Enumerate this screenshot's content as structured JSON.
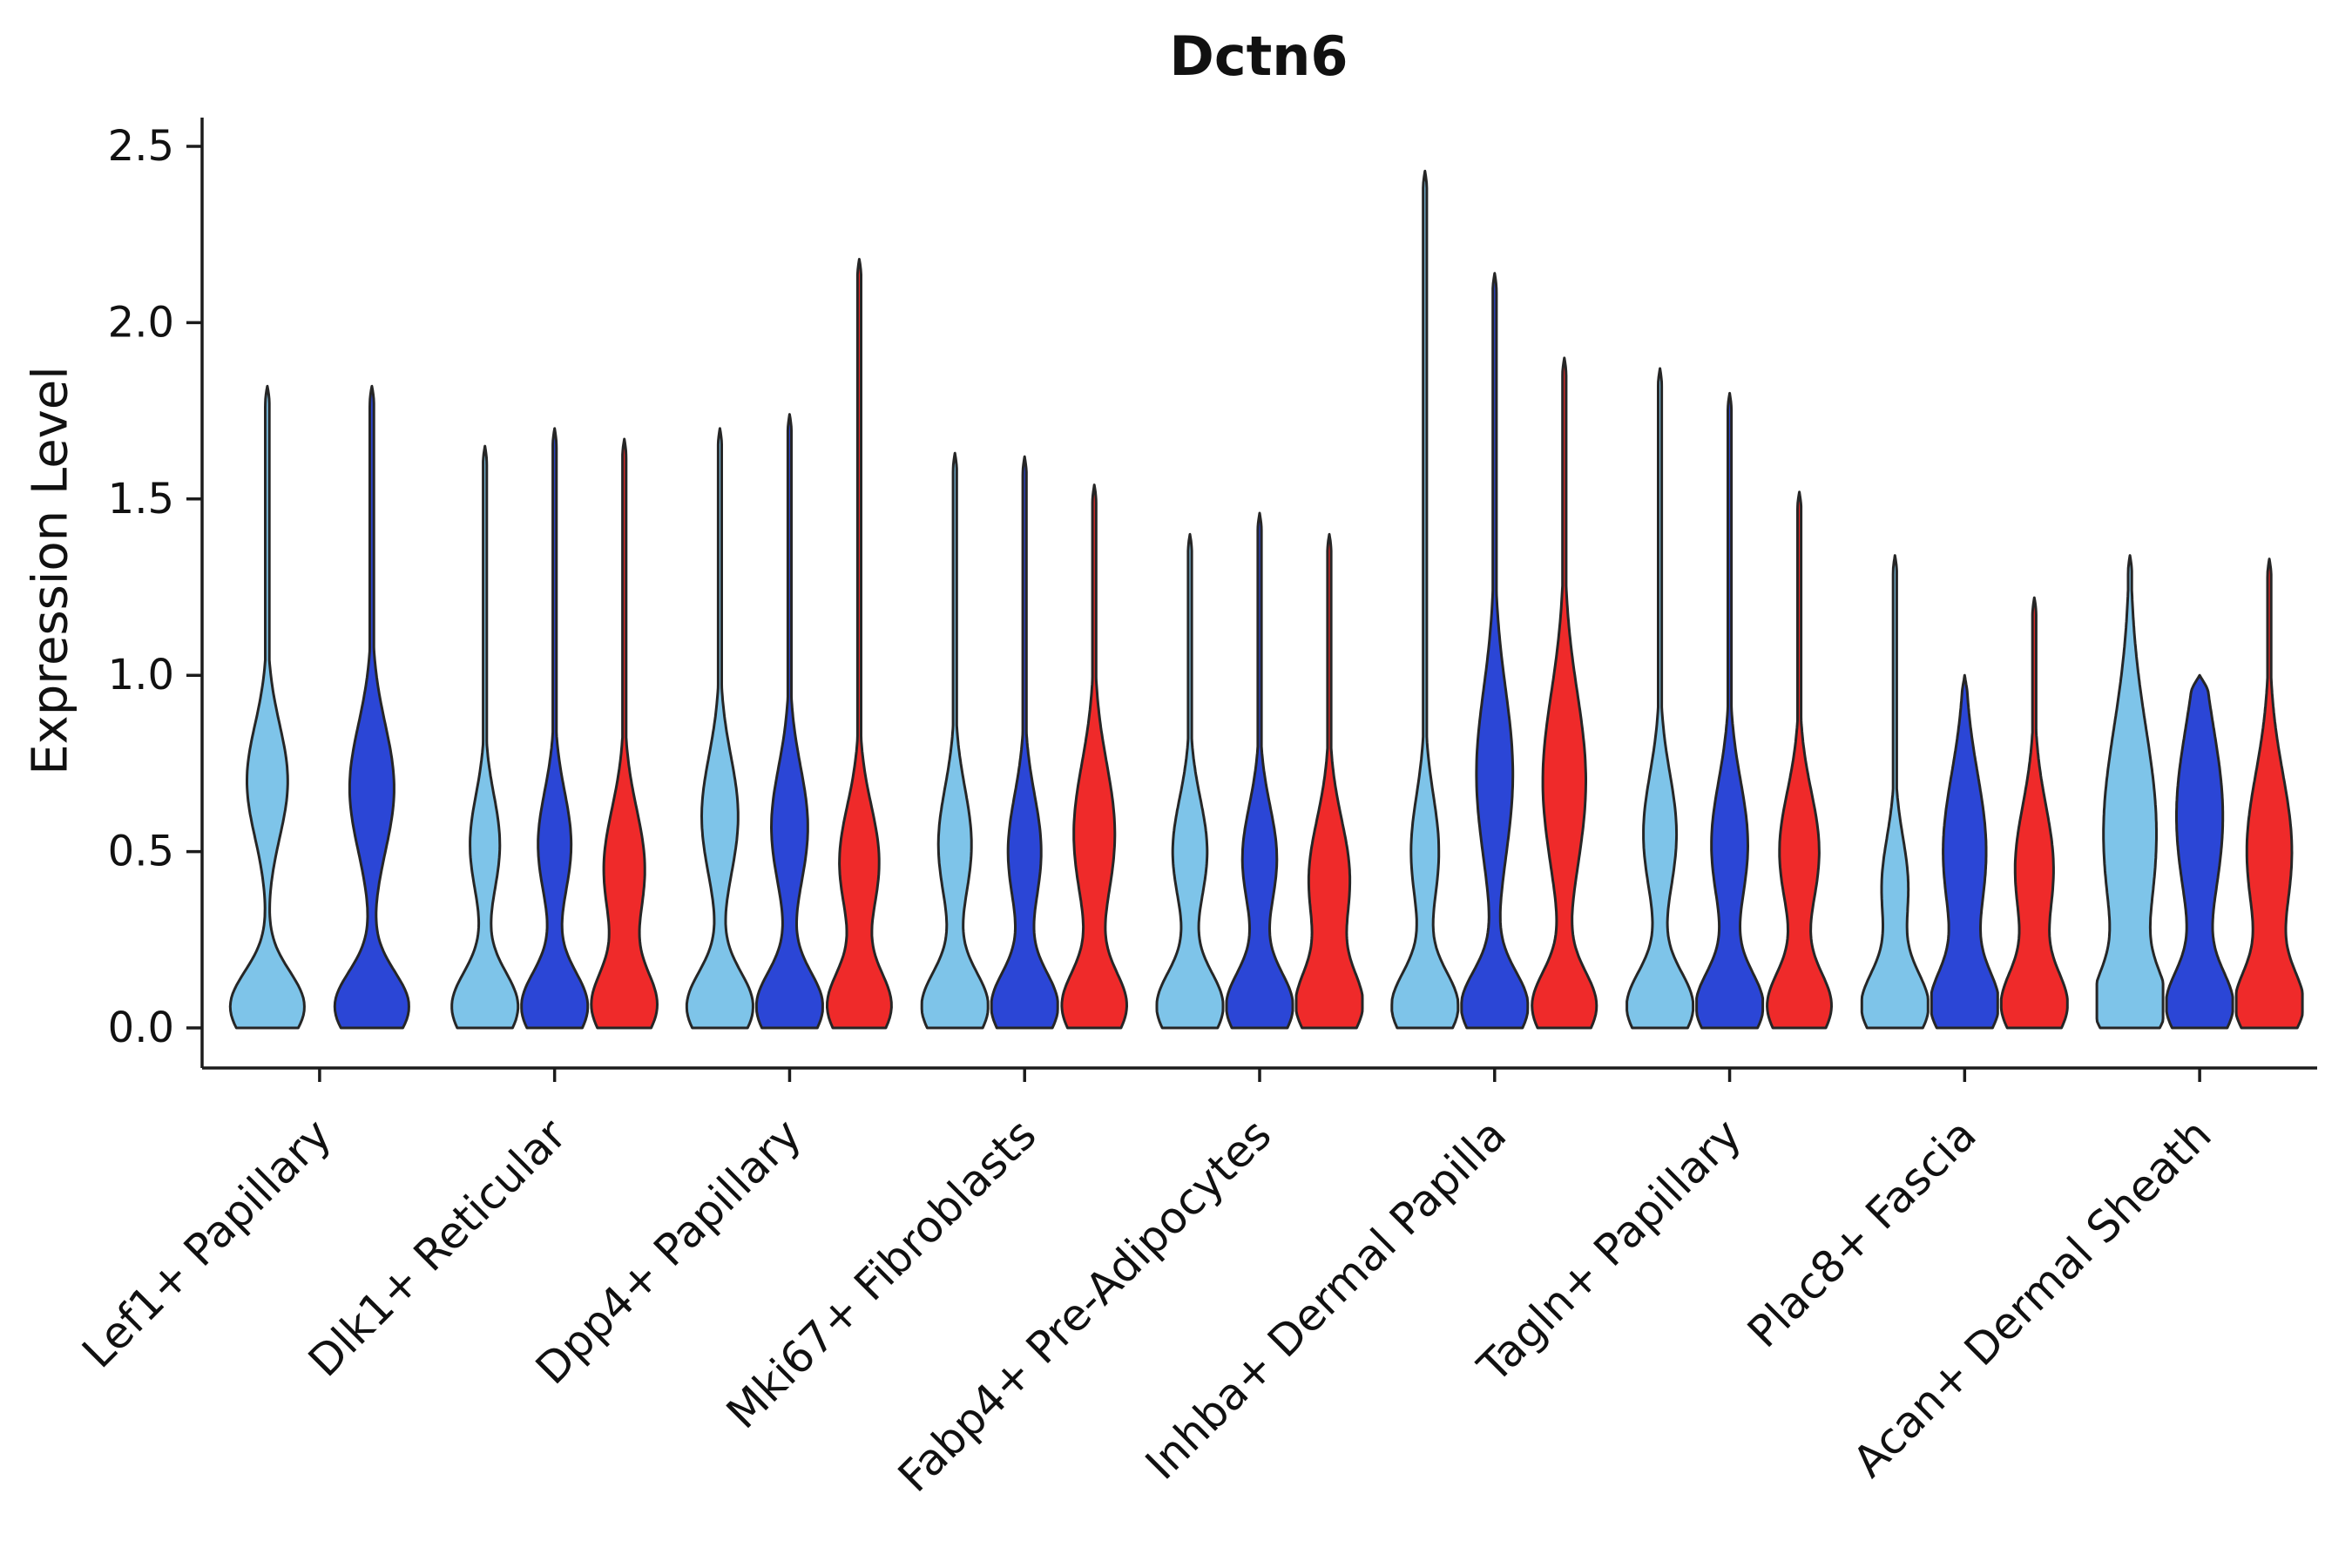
{
  "chart_data": {
    "type": "violin",
    "title": "Dctn6",
    "ylabel": "Expression Level",
    "xlabel": "",
    "ylim": [
      0,
      2.5
    ],
    "yticks": [
      0,
      0.5,
      1,
      1.5,
      2,
      2.5
    ],
    "ytick_labels": [
      "0.0",
      "0.5",
      "1.0",
      "1.5",
      "2.0",
      "2.5"
    ],
    "grid": false,
    "legend": "none",
    "palette": {
      "lightblue": "#7EC4E9",
      "blue": "#2B46D6",
      "red": "#EF2A2A"
    },
    "edge_color": "#262626",
    "categories": [
      "Lef1+ Papillary",
      "Dlk1+ Reticular",
      "Dpp4+ Papillary",
      "Mki67+ Fibroblasts",
      "Fabp4+ Pre-Adipocytes",
      "Inhba+ Dermal Papilla",
      "Tagln+ Papillary",
      "Plac8+ Fascia",
      "Acan+ Dermal Sheath"
    ],
    "violins": [
      {
        "group": 0,
        "slot": 0.25,
        "color": "lightblue",
        "max": 1.82,
        "w": 1.12,
        "bumps": [
          [
            0.06,
            1,
            0.1
          ],
          [
            0.7,
            0.55,
            0.16
          ]
        ]
      },
      {
        "group": 0,
        "slot": 1.75,
        "color": "blue",
        "max": 1.82,
        "w": 1.12,
        "bumps": [
          [
            0.06,
            1,
            0.1
          ],
          [
            0.68,
            0.6,
            0.18
          ]
        ]
      },
      {
        "group": 1,
        "slot": 0,
        "color": "lightblue",
        "max": 1.65,
        "w": 1,
        "bumps": [
          [
            0.06,
            1,
            0.1
          ],
          [
            0.52,
            0.45,
            0.14
          ]
        ]
      },
      {
        "group": 1,
        "slot": 1,
        "color": "blue",
        "max": 1.7,
        "w": 1,
        "bumps": [
          [
            0.06,
            1,
            0.1
          ],
          [
            0.52,
            0.5,
            0.15
          ]
        ]
      },
      {
        "group": 1,
        "slot": 2,
        "color": "red",
        "max": 1.67,
        "w": 1,
        "bumps": [
          [
            0.06,
            0.95,
            0.1
          ],
          [
            0.45,
            0.62,
            0.17
          ]
        ]
      },
      {
        "group": 2,
        "slot": 0,
        "color": "lightblue",
        "max": 1.7,
        "w": 1,
        "bumps": [
          [
            0.06,
            1,
            0.1
          ],
          [
            0.6,
            0.55,
            0.17
          ]
        ]
      },
      {
        "group": 2,
        "slot": 1,
        "color": "blue",
        "max": 1.74,
        "w": 1,
        "bumps": [
          [
            0.06,
            1,
            0.1
          ],
          [
            0.57,
            0.55,
            0.17
          ]
        ]
      },
      {
        "group": 2,
        "slot": 2,
        "color": "red",
        "max": 2.18,
        "w": 1,
        "bumps": [
          [
            0.06,
            0.95,
            0.1
          ],
          [
            0.47,
            0.6,
            0.16
          ]
        ]
      },
      {
        "group": 3,
        "slot": 0,
        "color": "lightblue",
        "max": 1.63,
        "w": 1,
        "bumps": [
          [
            0.06,
            1,
            0.1
          ],
          [
            0.52,
            0.5,
            0.16
          ]
        ]
      },
      {
        "group": 3,
        "slot": 1,
        "color": "blue",
        "max": 1.62,
        "w": 1,
        "bumps": [
          [
            0.06,
            1,
            0.1
          ],
          [
            0.5,
            0.5,
            0.16
          ]
        ]
      },
      {
        "group": 3,
        "slot": 2,
        "color": "red",
        "max": 1.54,
        "w": 1,
        "bumps": [
          [
            0.06,
            0.95,
            0.1
          ],
          [
            0.55,
            0.62,
            0.2
          ]
        ]
      },
      {
        "group": 4,
        "slot": 0,
        "color": "lightblue",
        "max": 1.4,
        "w": 1,
        "bumps": [
          [
            0.06,
            1,
            0.1
          ],
          [
            0.5,
            0.52,
            0.15
          ]
        ]
      },
      {
        "group": 4,
        "slot": 1,
        "color": "blue",
        "max": 1.46,
        "w": 1,
        "bumps": [
          [
            0.06,
            1,
            0.1
          ],
          [
            0.48,
            0.52,
            0.15
          ]
        ]
      },
      {
        "group": 4,
        "slot": 2,
        "color": "red",
        "max": 1.4,
        "w": 1,
        "bumps": [
          [
            0.06,
            0.95,
            0.1
          ],
          [
            0.42,
            0.62,
            0.17
          ]
        ]
      },
      {
        "group": 5,
        "slot": 0,
        "color": "lightblue",
        "max": 2.43,
        "w": 1,
        "bumps": [
          [
            0.06,
            1,
            0.1
          ],
          [
            0.5,
            0.42,
            0.16
          ]
        ]
      },
      {
        "group": 5,
        "slot": 1,
        "color": "blue",
        "max": 2.14,
        "w": 1,
        "bumps": [
          [
            0.06,
            1,
            0.1
          ],
          [
            0.72,
            0.55,
            0.24
          ]
        ]
      },
      {
        "group": 5,
        "slot": 2,
        "color": "red",
        "max": 1.9,
        "w": 1,
        "bumps": [
          [
            0.06,
            0.95,
            0.1
          ],
          [
            0.7,
            0.65,
            0.25
          ]
        ]
      },
      {
        "group": 6,
        "slot": 0,
        "color": "lightblue",
        "max": 1.87,
        "w": 1,
        "bumps": [
          [
            0.06,
            1,
            0.1
          ],
          [
            0.55,
            0.5,
            0.17
          ]
        ]
      },
      {
        "group": 6,
        "slot": 1,
        "color": "blue",
        "max": 1.8,
        "w": 1,
        "bumps": [
          [
            0.06,
            1,
            0.1
          ],
          [
            0.52,
            0.55,
            0.18
          ]
        ]
      },
      {
        "group": 6,
        "slot": 2,
        "color": "red",
        "max": 1.52,
        "w": 1,
        "bumps": [
          [
            0.06,
            0.95,
            0.1
          ],
          [
            0.5,
            0.6,
            0.17
          ]
        ]
      },
      {
        "group": 7,
        "slot": 0,
        "color": "lightblue",
        "max": 1.34,
        "w": 1,
        "bumps": [
          [
            0.06,
            1,
            0.1
          ],
          [
            0.4,
            0.4,
            0.14
          ]
        ]
      },
      {
        "group": 7,
        "slot": 1,
        "color": "blue",
        "max": 1.0,
        "w": 1,
        "bumps": [
          [
            0.06,
            0.95,
            0.1
          ],
          [
            0.5,
            0.65,
            0.22
          ]
        ]
      },
      {
        "group": 7,
        "slot": 2,
        "color": "red",
        "max": 1.22,
        "w": 1,
        "bumps": [
          [
            0.06,
            0.95,
            0.1
          ],
          [
            0.45,
            0.58,
            0.18
          ]
        ]
      },
      {
        "group": 8,
        "slot": 0,
        "color": "lightblue",
        "max": 1.34,
        "w": 1,
        "bumps": [
          [
            0.06,
            0.9,
            0.1
          ],
          [
            0.55,
            0.8,
            0.3
          ]
        ]
      },
      {
        "group": 8,
        "slot": 1,
        "color": "blue",
        "max": 1.0,
        "w": 1,
        "bumps": [
          [
            0.06,
            0.95,
            0.1
          ],
          [
            0.6,
            0.7,
            0.25
          ]
        ]
      },
      {
        "group": 8,
        "slot": 2,
        "color": "red",
        "max": 1.33,
        "w": 1,
        "bumps": [
          [
            0.06,
            0.95,
            0.1
          ],
          [
            0.5,
            0.68,
            0.22
          ]
        ]
      }
    ]
  }
}
